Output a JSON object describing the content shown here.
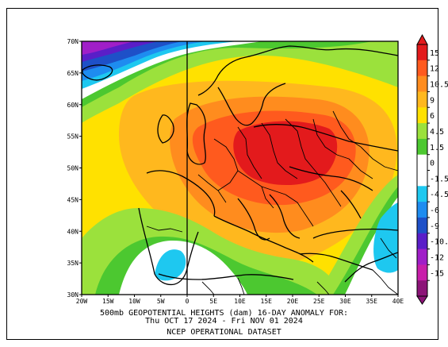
{
  "map": {
    "xticks": [
      "20W",
      "15W",
      "10W",
      "5W",
      "0",
      "5E",
      "10E",
      "15E",
      "20E",
      "25E",
      "30E",
      "35E",
      "40E"
    ],
    "yticks": [
      "70N",
      "65N",
      "60N",
      "55N",
      "50N",
      "45N",
      "40N",
      "35N",
      "30N"
    ],
    "extent": {
      "lon": [
        -20,
        40
      ],
      "lat": [
        30,
        70
      ]
    }
  },
  "caption": {
    "line1": "500mb GEOPOTENTIAL HEIGHTS (dam)    16-DAY ANOMALY FOR:",
    "line2": "Thu OCT 17 2024 - Fri NOV 01 2024",
    "line3": "NCEP OPERATIONAL DATASET"
  },
  "colorbar": {
    "labels": [
      "15",
      "12",
      "10.5",
      "9",
      "6",
      "4.5",
      "1.5",
      "0",
      "-1.5",
      "-4.5",
      "-6",
      "-9",
      "-10.",
      "-12",
      "-15"
    ],
    "colors": [
      "#e31a1c",
      "#ff5a1e",
      "#ff8c1e",
      "#ffb81e",
      "#ffe100",
      "#9be13c",
      "#4cc830",
      "#ffffff",
      "#ffffff",
      "#1ec8f0",
      "#1e8cf0",
      "#1e50c8",
      "#5a1ec8",
      "#a01ec8",
      "#c81eaa",
      "#8c1478"
    ]
  },
  "colors": {
    "zero": "#ffffff",
    "pos1": "#4cc830",
    "pos2": "#9be13c",
    "pos3": "#ffe100",
    "pos4": "#ffb81e",
    "pos5": "#ff8c1e",
    "pos6": "#ff5a1e",
    "pos7": "#e31a1c",
    "neg1": "#1ec8f0",
    "neg2": "#1e8cf0",
    "neg3": "#1e50c8",
    "neg4": "#5a1ec8",
    "neg5": "#a01ec8"
  }
}
